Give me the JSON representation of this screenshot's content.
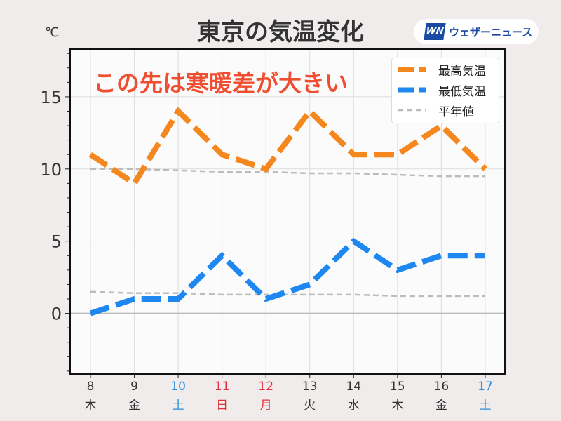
{
  "header": {
    "title": "東京の気温変化",
    "unit": "℃",
    "logo_mark": "WN",
    "logo_text": "ウェザーニュース"
  },
  "annotation": "この先は寒暖差が大きい",
  "chart_data": {
    "type": "line",
    "title": "東京の気温変化",
    "ylabel": "℃",
    "ylim": [
      -4.2,
      18.3
    ],
    "yticks": [
      0,
      5,
      10,
      15
    ],
    "x": [
      "8",
      "9",
      "10",
      "11",
      "12",
      "13",
      "14",
      "15",
      "16",
      "17"
    ],
    "weekdays": [
      "木",
      "金",
      "土",
      "日",
      "月",
      "火",
      "水",
      "木",
      "金",
      "土"
    ],
    "day_colors": [
      "#333333",
      "#333333",
      "#2a8ee0",
      "#e0303a",
      "#e0303a",
      "#333333",
      "#333333",
      "#333333",
      "#333333",
      "#2a8ee0"
    ],
    "series": [
      {
        "name": "最高気温",
        "color": "#f5871f",
        "values": [
          11,
          9,
          14,
          11,
          10,
          14,
          11,
          11,
          13,
          10
        ]
      },
      {
        "name": "最低気温",
        "color": "#1e88f0",
        "values": [
          0,
          1,
          1,
          4,
          1,
          2,
          5,
          3,
          4,
          4
        ]
      },
      {
        "name": "平年値",
        "color": "#bbbbbb",
        "values": [
          10,
          10,
          9.9,
          9.8,
          9.8,
          9.7,
          9.7,
          9.6,
          9.5,
          9.5
        ]
      },
      {
        "name": "平年値",
        "color": "#bbbbbb",
        "values": [
          1.5,
          1.4,
          1.4,
          1.3,
          1.3,
          1.3,
          1.3,
          1.2,
          1.2,
          1.2
        ],
        "legend": false
      }
    ],
    "grid": true,
    "legend": "top-right"
  }
}
